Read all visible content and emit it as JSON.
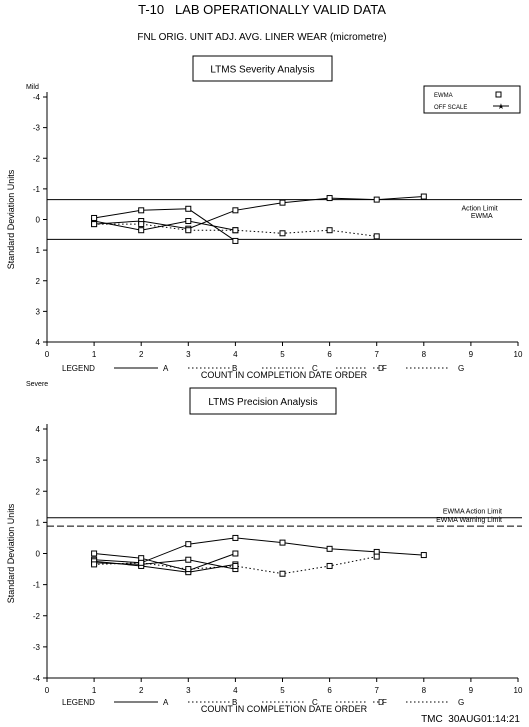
{
  "title": "T-10   LAB OPERATIONALLY VALID DATA",
  "subtitle": "FNL ORIG. UNIT ADJ. AVG. LINER WEAR (micrometre)",
  "footer": "TMC  30AUG01:14:21",
  "chart_data": [
    {
      "type": "line",
      "panel_title": "LTMS Severity Analysis",
      "top_label": "Mild",
      "bottom_label": "Severe",
      "ylabel": "Standard Deviation Units",
      "xlabel": "COUNT IN COMPLETION DATE ORDER",
      "xlim": [
        0,
        10
      ],
      "ylim": [
        -4,
        4
      ],
      "y_inverted": true,
      "x_ticks": [
        "0",
        "1",
        "2",
        "3",
        "4",
        "5",
        "6",
        "7",
        "8",
        "9",
        "10"
      ],
      "y_ticks": [
        "-4",
        "-3",
        "-2",
        "-1",
        "0",
        "1",
        "2",
        "3",
        "4"
      ],
      "legend_entries": [
        "EWMA",
        "OFF SCALE"
      ],
      "series_legend": {
        "title": "LEGEND",
        "labels": [
          "A",
          "B",
          "C",
          "D",
          "F",
          "G"
        ]
      },
      "reference_lines": [
        {
          "y": -0.65,
          "style": "solid"
        },
        {
          "y": 0.65,
          "style": "solid"
        }
      ],
      "annotations": [
        {
          "text": "Action Limit",
          "x": 8.8,
          "y": -0.3
        },
        {
          "text": "EWMA",
          "x": 9.0,
          "y": -0.05
        }
      ],
      "series": [
        {
          "style": "solid",
          "x": [
            1,
            2,
            3,
            4
          ],
          "y": [
            0.05,
            0.35,
            0.05,
            0.35
          ]
        },
        {
          "style": "solid",
          "x": [
            1,
            2,
            3,
            4,
            5,
            6,
            7,
            8
          ],
          "y": [
            0.15,
            0.05,
            0.3,
            -0.3,
            -0.55,
            -0.7,
            -0.65,
            -0.75
          ]
        },
        {
          "style": "solid",
          "x": [
            1,
            2,
            3,
            4
          ],
          "y": [
            -0.05,
            -0.3,
            -0.35,
            0.7
          ]
        },
        {
          "style": "dotted",
          "x": [
            1,
            2,
            3,
            4,
            5,
            6,
            7
          ],
          "y": [
            0.15,
            0.15,
            0.35,
            0.35,
            0.45,
            0.35,
            0.55
          ]
        }
      ]
    },
    {
      "type": "line",
      "panel_title": "LTMS Precision Analysis",
      "ylabel": "Standard Deviation Units",
      "xlabel": "COUNT IN COMPLETION DATE ORDER",
      "xlim": [
        0,
        10
      ],
      "ylim": [
        -4,
        4
      ],
      "x_ticks": [
        "0",
        "1",
        "2",
        "3",
        "4",
        "5",
        "6",
        "7",
        "8",
        "9",
        "10"
      ],
      "y_ticks": [
        "-4",
        "-3",
        "-2",
        "-1",
        "0",
        "1",
        "2",
        "3",
        "4"
      ],
      "series_legend": {
        "title": "LEGEND",
        "labels": [
          "A",
          "B",
          "C",
          "D",
          "F",
          "G"
        ]
      },
      "reference_lines": [
        {
          "y": 1.15,
          "style": "solid",
          "label": "EWMA Action Limit"
        },
        {
          "y": 0.88,
          "style": "dashed",
          "label": "EWMA Warning Limit"
        }
      ],
      "series": [
        {
          "style": "solid",
          "x": [
            1,
            2,
            3,
            4,
            5,
            6,
            7,
            8
          ],
          "y": [
            -0.2,
            -0.3,
            0.3,
            0.5,
            0.35,
            0.15,
            0.05,
            -0.05
          ]
        },
        {
          "style": "solid",
          "x": [
            1,
            2,
            3,
            4
          ],
          "y": [
            0,
            -0.15,
            -0.55,
            0
          ]
        },
        {
          "style": "solid",
          "x": [
            1,
            2,
            3,
            4
          ],
          "y": [
            -0.3,
            -0.35,
            -0.2,
            -0.5
          ]
        },
        {
          "style": "solid",
          "x": [
            1,
            2,
            3,
            4
          ],
          "y": [
            -0.25,
            -0.4,
            -0.6,
            -0.35
          ]
        },
        {
          "style": "dotted",
          "x": [
            1,
            2,
            3,
            4,
            5,
            6,
            7
          ],
          "y": [
            -0.35,
            -0.3,
            -0.5,
            -0.4,
            -0.65,
            -0.4,
            -0.1
          ]
        }
      ]
    }
  ]
}
